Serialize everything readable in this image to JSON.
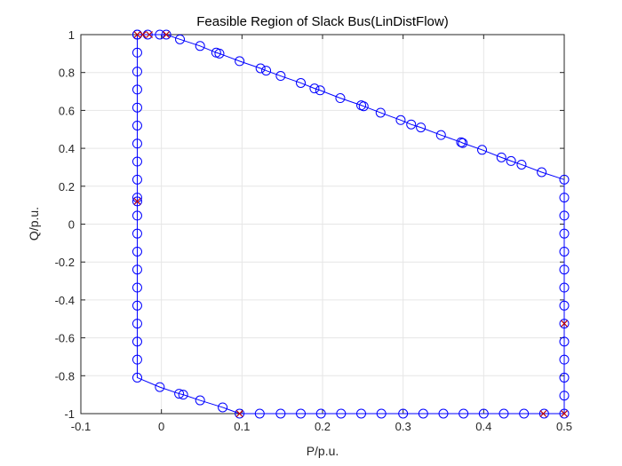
{
  "chart_data": {
    "type": "line",
    "title": "Feasible Region of Slack Bus(LinDistFlow)",
    "xlabel": "P/p.u.",
    "ylabel": "Q/p.u.",
    "xlim": [
      -0.1,
      0.5
    ],
    "ylim": [
      -1,
      1
    ],
    "xticks": [
      -0.1,
      0,
      0.1,
      0.2,
      0.3,
      0.4,
      0.5
    ],
    "yticks": [
      -1,
      -0.8,
      -0.6,
      -0.4,
      -0.2,
      0,
      0.2,
      0.4,
      0.6,
      0.8,
      1
    ],
    "xtick_labels": [
      "-0.1",
      "0",
      "0.1",
      "0.2",
      "0.3",
      "0.4",
      "0.5"
    ],
    "ytick_labels": [
      "-1",
      "-0.8",
      "-0.6",
      "-0.4",
      "-0.2",
      "0",
      "0.2",
      "0.4",
      "0.6",
      "0.8",
      "1"
    ],
    "grid": true,
    "colors": {
      "boundary": "#0000ff",
      "vertices": "#c00000",
      "grid": "#e6e6e6",
      "axes": "#262626"
    },
    "series": [
      {
        "marker": "circle",
        "points": [
          [
            -0.03,
            1.0
          ],
          [
            -0.017,
            1.0
          ],
          [
            -0.002,
            1.0
          ],
          [
            0.006,
            1.0
          ],
          [
            0.023,
            0.975
          ],
          [
            0.048,
            0.94
          ],
          [
            0.068,
            0.905
          ],
          [
            0.072,
            0.9
          ],
          [
            0.097,
            0.86
          ],
          [
            0.123,
            0.822
          ],
          [
            0.13,
            0.81
          ],
          [
            0.148,
            0.782
          ],
          [
            0.173,
            0.745
          ],
          [
            0.19,
            0.716
          ],
          [
            0.197,
            0.706
          ],
          [
            0.222,
            0.665
          ],
          [
            0.248,
            0.627
          ],
          [
            0.251,
            0.622
          ],
          [
            0.272,
            0.588
          ],
          [
            0.297,
            0.549
          ],
          [
            0.31,
            0.526
          ],
          [
            0.322,
            0.51
          ],
          [
            0.347,
            0.47
          ],
          [
            0.372,
            0.432
          ],
          [
            0.374,
            0.428
          ],
          [
            0.398,
            0.392
          ],
          [
            0.422,
            0.352
          ],
          [
            0.434,
            0.333
          ],
          [
            0.447,
            0.314
          ],
          [
            0.472,
            0.274
          ],
          [
            0.5,
            0.235
          ],
          [
            0.5,
            0.14
          ],
          [
            0.5,
            0.045
          ],
          [
            0.5,
            -0.05
          ],
          [
            0.5,
            -0.145
          ],
          [
            0.5,
            -0.24
          ],
          [
            0.5,
            -0.335
          ],
          [
            0.5,
            -0.43
          ],
          [
            0.5,
            -0.525
          ],
          [
            0.5,
            -0.62
          ],
          [
            0.5,
            -0.715
          ],
          [
            0.5,
            -0.81
          ],
          [
            0.5,
            -0.905
          ],
          [
            0.5,
            -1.0
          ],
          [
            0.475,
            -1.0
          ],
          [
            0.45,
            -1.0
          ],
          [
            0.425,
            -1.0
          ],
          [
            0.4,
            -1.0
          ],
          [
            0.375,
            -1.0
          ],
          [
            0.35,
            -1.0
          ],
          [
            0.325,
            -1.0
          ],
          [
            0.3,
            -1.0
          ],
          [
            0.273,
            -1.0
          ],
          [
            0.248,
            -1.0
          ],
          [
            0.223,
            -1.0
          ],
          [
            0.198,
            -1.0
          ],
          [
            0.173,
            -1.0
          ],
          [
            0.148,
            -1.0
          ],
          [
            0.122,
            -1.0
          ],
          [
            0.097,
            -1.0
          ],
          [
            0.076,
            -0.967
          ],
          [
            0.048,
            -0.93
          ],
          [
            0.027,
            -0.9
          ],
          [
            0.022,
            -0.895
          ],
          [
            -0.002,
            -0.86
          ],
          [
            -0.03,
            -0.81
          ],
          [
            -0.03,
            -0.715
          ],
          [
            -0.03,
            -0.62
          ],
          [
            -0.03,
            -0.525
          ],
          [
            -0.03,
            -0.43
          ],
          [
            -0.03,
            -0.335
          ],
          [
            -0.03,
            -0.24
          ],
          [
            -0.03,
            -0.145
          ],
          [
            -0.03,
            -0.05
          ],
          [
            -0.03,
            0.045
          ],
          [
            -0.03,
            0.12
          ],
          [
            -0.03,
            0.14
          ],
          [
            -0.03,
            0.235
          ],
          [
            -0.03,
            0.33
          ],
          [
            -0.03,
            0.425
          ],
          [
            -0.03,
            0.52
          ],
          [
            -0.03,
            0.615
          ],
          [
            -0.03,
            0.71
          ],
          [
            -0.03,
            0.805
          ],
          [
            -0.03,
            0.905
          ],
          [
            -0.03,
            1.0
          ]
        ]
      },
      {
        "marker": "x",
        "points": [
          [
            -0.03,
            1.0
          ],
          [
            -0.023,
            1.0
          ],
          [
            -0.015,
            1.0
          ],
          [
            0.006,
            1.0
          ],
          [
            -0.03,
            0.12
          ],
          [
            0.5,
            -0.525
          ],
          [
            0.5,
            -1.0
          ],
          [
            0.474,
            -1.0
          ],
          [
            0.097,
            -1.0
          ]
        ]
      }
    ]
  }
}
